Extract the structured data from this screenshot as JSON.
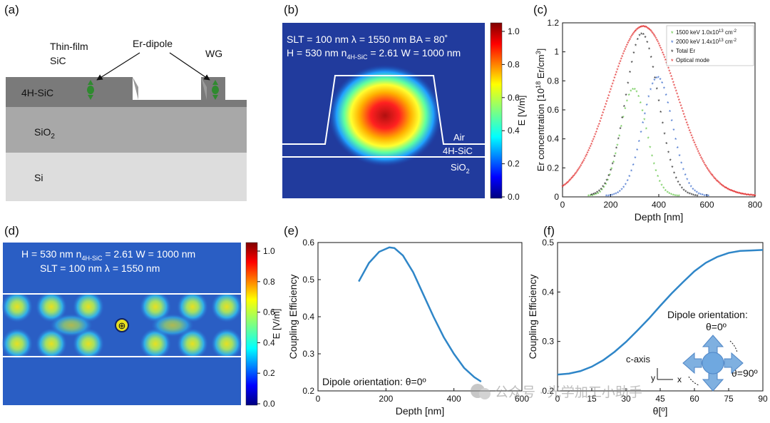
{
  "panels": {
    "a": {
      "label": "(a)",
      "texts": {
        "thin_film": "Thin-film",
        "sic": "SiC",
        "er_dipole": "Er-dipole",
        "wg": "WG"
      },
      "layers": [
        {
          "name": "4H-SiC",
          "label": "4H-SiC",
          "color": "#7a7a7a"
        },
        {
          "name": "SiO2",
          "label": "SiO",
          "sub": "2",
          "color": "#a8a8a8"
        },
        {
          "name": "Si",
          "label": "Si",
          "color": "#dddddd"
        }
      ]
    },
    "b": {
      "label": "(b)",
      "line1": "SLT = 100 nm  λ = 1550 nm  BA = 80˚",
      "line2_pre": "H = 530 nm  n",
      "line2_sub": "4H-SiC",
      "line2_post": " = 2.61  W = 1000 nm",
      "regions": {
        "air": "Air",
        "sic": "4H-SiC",
        "sio2": "SiO",
        "sio2_sub": "2"
      },
      "colorbar": {
        "label": "E [V/m]",
        "ticks": [
          "0.0",
          "0.2",
          "0.4",
          "0.6",
          "0.8",
          "1.0"
        ]
      }
    },
    "c": {
      "label": "(c)",
      "legend": [
        {
          "pre": "1500 keV 1.0x10",
          "sup": "13",
          "post": " cm",
          "sup2": "-2"
        },
        {
          "pre": "2000 keV 1.4x10",
          "sup": "13",
          "post": " cm",
          "sup2": "-2"
        },
        {
          "pre": "Total Er",
          "sup": "",
          "post": "",
          "sup2": ""
        },
        {
          "pre": "Optical mode",
          "sup": "",
          "post": "",
          "sup2": ""
        }
      ]
    },
    "d": {
      "label": "(d)",
      "line1_pre": "H = 530 nm  n",
      "line1_sub": "4H-SiC",
      "line1_post": " = 2.61  W = 1000 nm",
      "line2": "SLT = 100 nm  λ = 1550 nm",
      "colorbar": {
        "label": "E [V/m]",
        "ticks": [
          "0.0",
          "0.2",
          "0.4",
          "0.6",
          "0.8",
          "1.0"
        ]
      }
    },
    "e": {
      "label": "(e)",
      "annotation": "Dipole orientation: θ=0º"
    },
    "f": {
      "label": "(f)",
      "annotation": "Dipole orientation:",
      "theta0": "θ=0º",
      "theta90": "θ=90º",
      "caxis": "c-axis",
      "y": "y",
      "x": "x"
    }
  },
  "watermark": "公众号 · 光学加工小助手",
  "colors": {
    "green": "#58c23a",
    "blue": "#2b5fc7",
    "black": "#111111",
    "red": "#e02020",
    "line": "#2f86c8"
  },
  "chart_data": [
    {
      "panel": "c",
      "type": "scatter",
      "xlabel": "Depth [nm]",
      "ylabel_pre": "Er concentration [10",
      "ylabel_sup": "18",
      "ylabel_post": " Er/cm",
      "ylabel_sup2": "3",
      "ylabel_end": "]",
      "xlim": [
        0,
        800
      ],
      "ylim": [
        0,
        1.2
      ],
      "xticks": [
        0,
        200,
        400,
        600,
        800
      ],
      "yticks": [
        0,
        0.2,
        0.4,
        0.6,
        0.8,
        1.0,
        1.2
      ],
      "series": [
        {
          "name": "1500 keV 1.0x10^13 cm^-2",
          "mean": 295,
          "sigma": 55,
          "amp": 0.74,
          "xmin": 100,
          "xmax": 500
        },
        {
          "name": "2000 keV 1.4x10^13 cm^-2",
          "mean": 395,
          "sigma": 62,
          "amp": 0.82,
          "xmin": 150,
          "xmax": 620
        },
        {
          "name": "Total Er",
          "mean": 330,
          "sigma": 68,
          "amp": 1.12,
          "xmin": 120,
          "xmax": 560
        },
        {
          "name": "Optical mode",
          "mean": 335,
          "sigma": 140,
          "amp": 1.17,
          "xmin": 0,
          "xmax": 800
        }
      ]
    },
    {
      "panel": "e",
      "type": "line",
      "xlabel": "Depth [nm]",
      "ylabel": "Coupling Efficiency",
      "xlim": [
        0,
        600
      ],
      "ylim": [
        0.2,
        0.6
      ],
      "xticks": [
        0,
        200,
        400,
        600
      ],
      "yticks": [
        0.2,
        0.3,
        0.4,
        0.5,
        0.6
      ],
      "x": [
        120,
        150,
        180,
        210,
        225,
        250,
        280,
        310,
        340,
        370,
        400,
        430,
        460,
        480
      ],
      "y": [
        0.495,
        0.545,
        0.575,
        0.587,
        0.585,
        0.565,
        0.52,
        0.46,
        0.4,
        0.345,
        0.3,
        0.262,
        0.237,
        0.225
      ]
    },
    {
      "panel": "f",
      "type": "line",
      "xlabel": "θ[º]",
      "ylabel": "Coupling Efficiency",
      "xlim": [
        0,
        90
      ],
      "ylim": [
        0.2,
        0.5
      ],
      "xticks": [
        0,
        15,
        30,
        45,
        60,
        75,
        90
      ],
      "yticks": [
        0.2,
        0.3,
        0.4,
        0.5
      ],
      "x": [
        0,
        5,
        10,
        15,
        20,
        25,
        30,
        35,
        40,
        45,
        50,
        55,
        60,
        65,
        70,
        75,
        80,
        85,
        90
      ],
      "y": [
        0.233,
        0.235,
        0.24,
        0.249,
        0.262,
        0.279,
        0.299,
        0.322,
        0.346,
        0.372,
        0.397,
        0.42,
        0.442,
        0.459,
        0.471,
        0.479,
        0.483,
        0.484,
        0.485
      ]
    }
  ]
}
